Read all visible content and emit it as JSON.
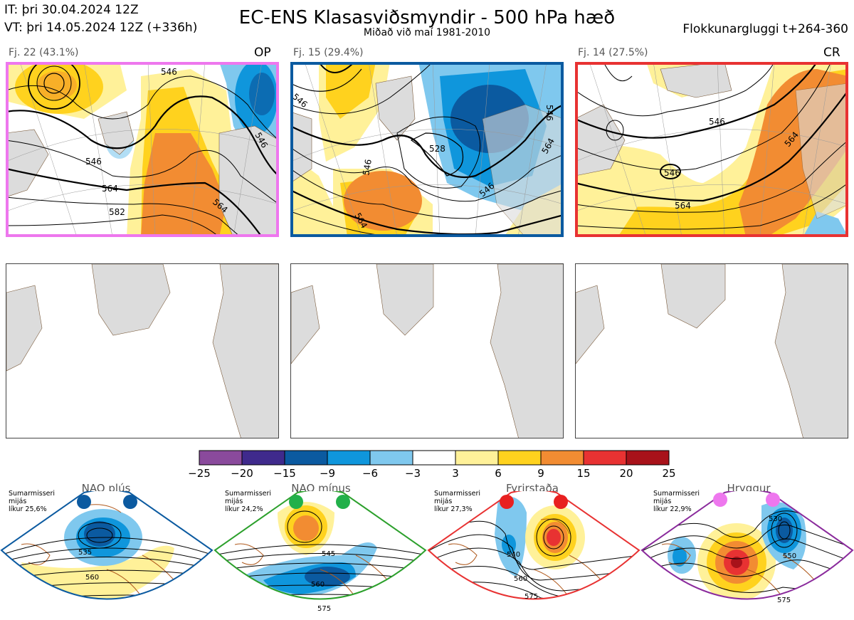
{
  "header": {
    "it": "IT: þri 30.04.2024 12Z",
    "vt": "VT: þri 14.05.2024 12Z  (+336h)",
    "title": "EC-ENS Klasasviðsmyndir - 500 hPa hæð",
    "subtitle": "Miðað við maí 1981-2010",
    "window": "Flokkunargluggi t+264-360"
  },
  "clusters": [
    {
      "label": "Fj. 22 (43.1%)",
      "tag": "OP",
      "border_color": "#ee77ee",
      "contour_labels": [
        "546",
        "546",
        "546",
        "564",
        "564",
        "582"
      ]
    },
    {
      "label": "Fj. 15 (29.4%)",
      "tag": "",
      "border_color": "#0b5aa0",
      "contour_labels": [
        "528",
        "546",
        "546",
        "546",
        "564",
        "564",
        "546"
      ]
    },
    {
      "label": "Fj. 14 (27.5%)",
      "tag": "CR",
      "border_color": "#e83232",
      "contour_labels": [
        "546",
        "546",
        "564",
        "564"
      ]
    }
  ],
  "chart_data": {
    "type": "heatmap",
    "colorbar": {
      "ticks": [
        "−25",
        "−20",
        "−15",
        "−9",
        "−6",
        "−3",
        "3",
        "6",
        "9",
        "15",
        "20",
        "25"
      ],
      "colors": [
        "#8a4a9c",
        "#3f2a8c",
        "#0b5aa0",
        "#0f96dc",
        "#7fc8ee",
        "#ffffff",
        "#fff199",
        "#ffd21e",
        "#f28c32",
        "#e83232",
        "#a8121a"
      ]
    }
  },
  "regimes": [
    {
      "name": "NAO plús",
      "info": [
        "Sumarmisseri",
        "mijás",
        "líkur 25,6%"
      ],
      "border_color": "#0b5aa0",
      "dot_color": "#0b5aa0",
      "contour_labels": [
        "535",
        "560"
      ]
    },
    {
      "name": "NAO mínus",
      "info": [
        "Sumarmisseri",
        "mijás",
        "líkur 24,2%"
      ],
      "border_color": "#2ca02c",
      "dot_color": "#22b04a",
      "contour_labels": [
        "545",
        "560",
        "575"
      ]
    },
    {
      "name": "Fyrirstaða",
      "info": [
        "Sumarmisseri",
        "mijás",
        "líkur 27,3%"
      ],
      "border_color": "#e83232",
      "dot_color": "#e82020",
      "contour_labels": [
        "540",
        "560",
        "575"
      ]
    },
    {
      "name": "Hryggur",
      "info": [
        "Sumarmisseri",
        "mijás",
        "líkur 22,9%"
      ],
      "border_color": "#8a2a9c",
      "dot_color": "#ee77ee",
      "contour_labels": [
        "530",
        "550",
        "575"
      ]
    }
  ]
}
